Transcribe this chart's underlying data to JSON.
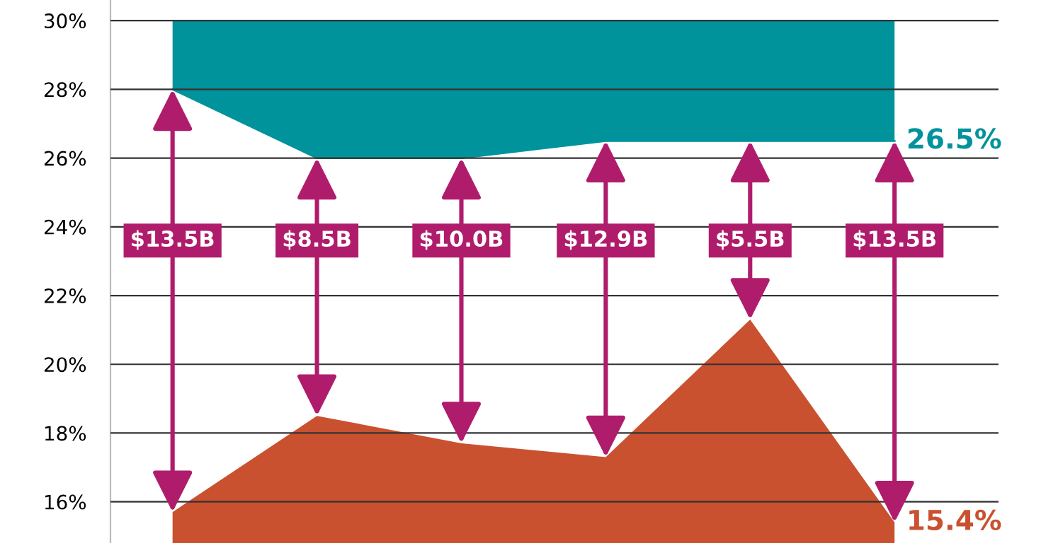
{
  "chart_data": {
    "type": "area",
    "categories": [
      null,
      null,
      null,
      null,
      null,
      null
    ],
    "series": [
      {
        "type": "line",
        "color": "#00939c",
        "values": [
          28,
          26,
          26,
          26.5,
          26.5,
          26.5
        ],
        "lower": [
          28,
          26,
          26,
          26.5,
          26.5,
          26.5
        ],
        "upper": [
          30,
          30,
          30,
          30,
          30,
          30
        ],
        "value_labels": [
          null,
          null,
          null,
          null,
          null,
          "26.5%"
        ]
      },
      {
        "color": "#c9512f",
        "values": [
          15.7,
          18.5,
          17.7,
          17.3,
          21.3,
          15.4
        ],
        "value_labels": [
          null,
          null,
          null,
          null,
          null,
          "15.4%"
        ]
      }
    ],
    "annotations": [
      "$13.5B",
      "$8.5B",
      "$10.0B",
      "$12.9B",
      "$5.5B",
      "$13.5B"
    ],
    "ylim": [
      14.8,
      30.6
    ],
    "yticks": [
      {
        "value": 16,
        "label": "16%"
      },
      {
        "value": 18,
        "label": "18%"
      },
      {
        "value": 20,
        "label": "20%"
      },
      {
        "value": 22,
        "label": "22%"
      },
      {
        "value": 24,
        "label": "24%"
      },
      {
        "value": 26,
        "label": "26%"
      },
      {
        "value": 28,
        "label": "28%"
      },
      {
        "value": 30,
        "label": "30%"
      }
    ],
    "grid": "y",
    "tick_labels": "y"
  }
}
